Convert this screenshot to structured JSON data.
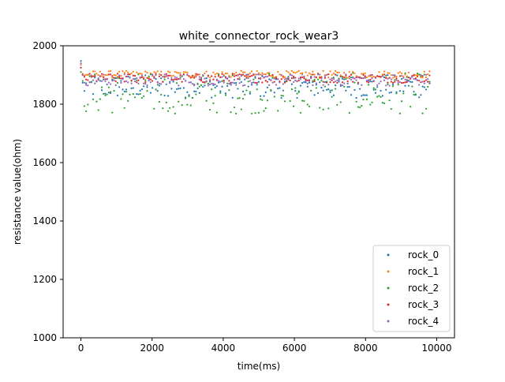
{
  "chart_data": {
    "type": "scatter",
    "title": "white_connector_rock_wear3",
    "xlabel": "time(ms)",
    "ylabel": "resistance value(ohm)",
    "xlim": [
      -500,
      10500
    ],
    "ylim": [
      1000,
      2000
    ],
    "x_ticks": [
      0,
      2000,
      4000,
      6000,
      8000,
      10000
    ],
    "y_ticks": [
      1000,
      1200,
      1400,
      1600,
      1800,
      2000
    ],
    "x_tick_labels": [
      "0",
      "2000",
      "4000",
      "6000",
      "8000",
      "10000"
    ],
    "y_tick_labels": [
      "1000",
      "1200",
      "1400",
      "1600",
      "1800",
      "2000"
    ],
    "grid": false,
    "legend_position": "bottom-right",
    "x_range_sampled": [
      0,
      9800
    ],
    "sample_step": 49,
    "series": [
      {
        "name": "rock_0",
        "color": "#1f77b4",
        "first_value": 1948,
        "base": 1865,
        "spread": 40
      },
      {
        "name": "rock_1",
        "color": "#ff7f0e",
        "first_value": 1935,
        "base": 1902,
        "spread": 12
      },
      {
        "name": "rock_2",
        "color": "#2ca02c",
        "first_value": 1910,
        "base": 1830,
        "spread": 70
      },
      {
        "name": "rock_3",
        "color": "#d62728",
        "first_value": 1925,
        "base": 1889,
        "spread": 16
      },
      {
        "name": "rock_4",
        "color": "#9467bd",
        "first_value": 1940,
        "base": 1883,
        "spread": 20
      }
    ]
  }
}
